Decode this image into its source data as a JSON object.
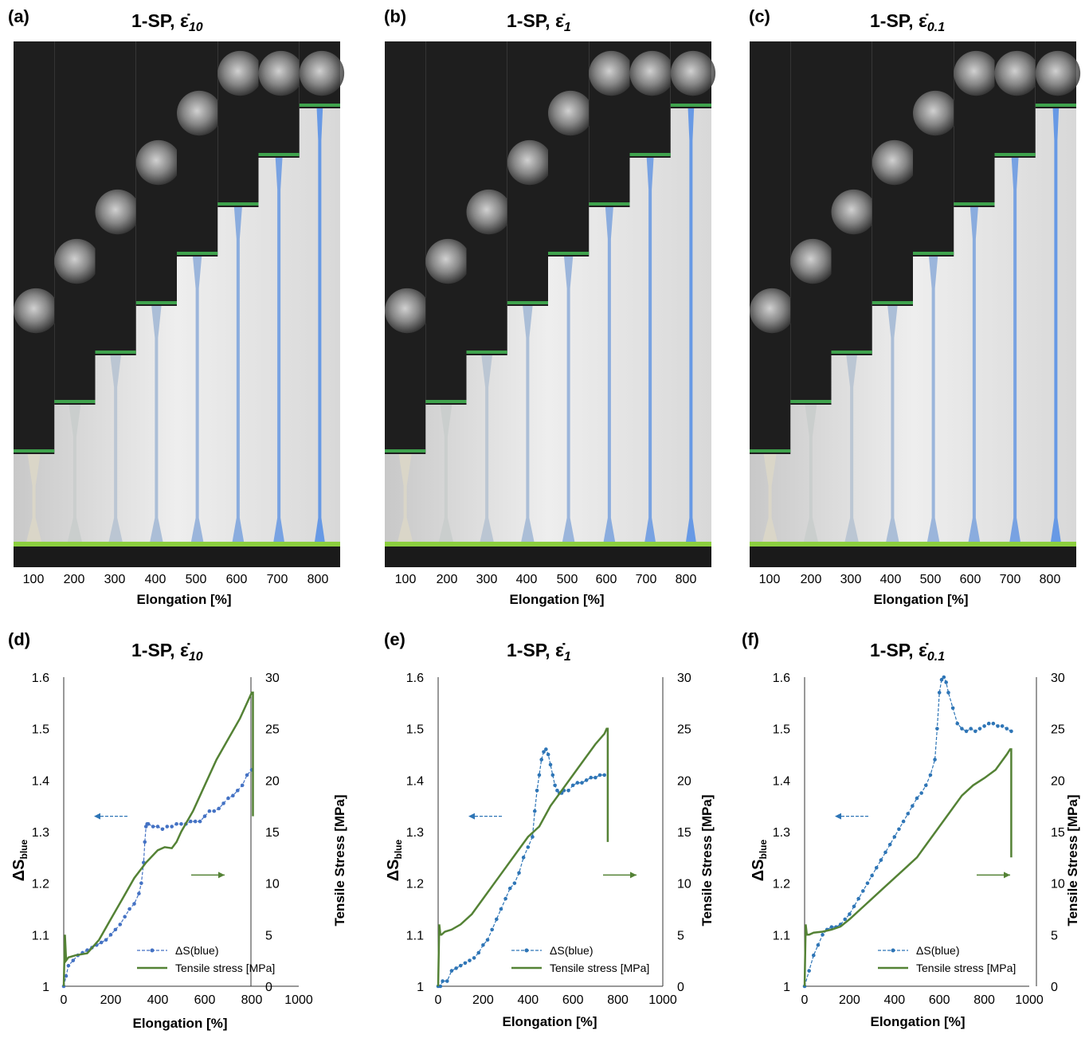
{
  "photo_panels": [
    {
      "letter": "(a)",
      "title": "1-SP, ",
      "rate_symbol": "ε̇",
      "rate_sub": "10",
      "xlabel": "Elongation [%]",
      "tick_labels": [
        "100",
        "200",
        "300",
        "400",
        "500",
        "600",
        "700",
        "800"
      ]
    },
    {
      "letter": "(b)",
      "title": "1-SP, ",
      "rate_symbol": "ε̇",
      "rate_sub": "1",
      "xlabel": "Elongation [%]",
      "tick_labels": [
        "100",
        "200",
        "300",
        "400",
        "500",
        "600",
        "700",
        "800"
      ]
    },
    {
      "letter": "(c)",
      "title": "1-SP, ",
      "rate_symbol": "ε̇",
      "rate_sub": "0.1",
      "xlabel": "Elongation [%]",
      "tick_labels": [
        "100",
        "200",
        "300",
        "400",
        "500",
        "600",
        "700",
        "800"
      ]
    }
  ],
  "chart_data": [
    {
      "type": "line",
      "letter": "(d)",
      "title": "1-SP, ",
      "rate_symbol": "ε̇",
      "rate_sub": "10",
      "xlabel": "Elongation [%]",
      "ylabel_main": "ΔS",
      "ylabel_sub": "blue",
      "y2label": "Tensile Stress [MPa]",
      "xlim": [
        0,
        1000
      ],
      "ylim": [
        1,
        1.6
      ],
      "y2lim": [
        0,
        30
      ],
      "xticks": [
        "0",
        "200",
        "400",
        "600",
        "800",
        "1000"
      ],
      "yticks": [
        "1",
        "1.1",
        "1.2",
        "1.3",
        "1.4",
        "1.5",
        "1.6"
      ],
      "y2ticks": [
        "0",
        "5",
        "10",
        "15",
        "20",
        "25",
        "30"
      ],
      "grid": false,
      "legend_position": "bottom-right",
      "series": [
        {
          "name": "ΔS(blue)",
          "axis": "left",
          "color": "#4472c4",
          "style": "dashed-markers",
          "x": [
            0,
            10,
            20,
            40,
            60,
            80,
            100,
            120,
            140,
            160,
            180,
            200,
            220,
            240,
            260,
            280,
            300,
            320,
            330,
            340,
            345,
            350,
            355,
            360,
            380,
            400,
            420,
            440,
            460,
            480,
            500,
            520,
            540,
            560,
            580,
            600,
            620,
            640,
            660,
            680,
            700,
            720,
            740,
            760,
            780,
            800
          ],
          "y": [
            1.0,
            1.02,
            1.04,
            1.05,
            1.06,
            1.065,
            1.07,
            1.075,
            1.08,
            1.085,
            1.09,
            1.1,
            1.11,
            1.12,
            1.135,
            1.15,
            1.16,
            1.18,
            1.2,
            1.24,
            1.28,
            1.31,
            1.315,
            1.315,
            1.31,
            1.31,
            1.305,
            1.31,
            1.31,
            1.315,
            1.315,
            1.315,
            1.32,
            1.32,
            1.32,
            1.33,
            1.34,
            1.34,
            1.345,
            1.355,
            1.365,
            1.37,
            1.38,
            1.39,
            1.41,
            1.42
          ]
        },
        {
          "name": "Tensile stress [MPa]",
          "axis": "right",
          "color": "#548235",
          "style": "solid",
          "x": [
            0,
            5,
            10,
            20,
            50,
            100,
            150,
            200,
            250,
            300,
            350,
            400,
            430,
            460,
            480,
            500,
            550,
            600,
            650,
            700,
            750,
            800,
            805,
            805
          ],
          "y": [
            0,
            5,
            2.5,
            2.8,
            3,
            3.2,
            4.5,
            6.5,
            8.5,
            10.5,
            12,
            13.2,
            13.5,
            13.4,
            14,
            15,
            17,
            19.5,
            22,
            24,
            26,
            28.5,
            28.5,
            16.5
          ]
        }
      ],
      "arrow_left": "←",
      "arrow_right": "→"
    },
    {
      "type": "line",
      "letter": "(e)",
      "title": "1-SP, ",
      "rate_symbol": "ε̇",
      "rate_sub": "1",
      "xlabel": "Elongation [%]",
      "ylabel_main": "ΔS",
      "ylabel_sub": "blue",
      "y2label": "Tensile Stress [MPa]",
      "xlim": [
        0,
        1000
      ],
      "ylim": [
        1,
        1.6
      ],
      "y2lim": [
        0,
        30
      ],
      "xticks": [
        "0",
        "200",
        "400",
        "600",
        "800",
        "1000"
      ],
      "yticks": [
        "1",
        "1.1",
        "1.2",
        "1.3",
        "1.4",
        "1.5",
        "1.6"
      ],
      "y2ticks": [
        "0",
        "5",
        "10",
        "15",
        "20",
        "25",
        "30"
      ],
      "grid": false,
      "legend_position": "bottom-right",
      "series": [
        {
          "name": "ΔS(blue)",
          "axis": "left",
          "color": "#2e75b6",
          "style": "dashed-markers",
          "x": [
            0,
            10,
            20,
            40,
            60,
            80,
            100,
            120,
            140,
            160,
            180,
            200,
            220,
            240,
            260,
            280,
            300,
            320,
            340,
            360,
            380,
            400,
            420,
            430,
            440,
            450,
            460,
            470,
            480,
            490,
            500,
            510,
            520,
            530,
            540,
            550,
            560,
            580,
            600,
            620,
            640,
            660,
            680,
            700,
            720,
            740
          ],
          "y": [
            1.0,
            1.0,
            1.01,
            1.01,
            1.03,
            1.035,
            1.04,
            1.045,
            1.05,
            1.055,
            1.065,
            1.08,
            1.09,
            1.11,
            1.13,
            1.15,
            1.17,
            1.19,
            1.2,
            1.22,
            1.25,
            1.27,
            1.29,
            1.34,
            1.38,
            1.41,
            1.44,
            1.455,
            1.46,
            1.45,
            1.43,
            1.41,
            1.39,
            1.38,
            1.375,
            1.375,
            1.38,
            1.38,
            1.39,
            1.395,
            1.395,
            1.4,
            1.405,
            1.405,
            1.41,
            1.41
          ]
        },
        {
          "name": "Tensile stress [MPa]",
          "axis": "right",
          "color": "#548235",
          "style": "solid",
          "x": [
            0,
            5,
            10,
            15,
            30,
            60,
            100,
            150,
            200,
            250,
            300,
            350,
            400,
            450,
            500,
            550,
            600,
            650,
            700,
            740,
            750,
            755,
            755
          ],
          "y": [
            0,
            6,
            5,
            5,
            5.3,
            5.5,
            6,
            7,
            8.5,
            10,
            11.5,
            13,
            14.5,
            15.5,
            17.5,
            19,
            20.5,
            22,
            23.5,
            24.5,
            25,
            25,
            14
          ]
        }
      ],
      "arrow_left": "←",
      "arrow_right": "→"
    },
    {
      "type": "line",
      "letter": "(f)",
      "title": "1-SP, ",
      "rate_symbol": "ε̇",
      "rate_sub": "0.1",
      "xlabel": "Elongation [%]",
      "ylabel_main": "ΔS",
      "ylabel_sub": "blue",
      "y2label": "Tensile Stress [MPa]",
      "xlim": [
        0,
        1000
      ],
      "ylim": [
        1,
        1.6
      ],
      "y2lim": [
        0,
        30
      ],
      "xticks": [
        "0",
        "200",
        "400",
        "600",
        "800",
        "1000"
      ],
      "yticks": [
        "1",
        "1.1",
        "1.2",
        "1.3",
        "1.4",
        "1.5",
        "1.6"
      ],
      "y2ticks": [
        "0",
        "5",
        "10",
        "15",
        "20",
        "25",
        "30"
      ],
      "grid": false,
      "legend_position": "bottom-right",
      "series": [
        {
          "name": "ΔS(blue)",
          "axis": "left",
          "color": "#2e75b6",
          "style": "dashed-markers",
          "x": [
            0,
            20,
            40,
            60,
            80,
            100,
            120,
            140,
            160,
            180,
            200,
            220,
            240,
            260,
            280,
            300,
            320,
            340,
            360,
            380,
            400,
            420,
            440,
            460,
            480,
            500,
            520,
            540,
            560,
            580,
            590,
            600,
            610,
            620,
            630,
            640,
            660,
            680,
            700,
            720,
            740,
            760,
            780,
            800,
            820,
            840,
            860,
            880,
            900,
            920
          ],
          "y": [
            1.0,
            1.03,
            1.06,
            1.08,
            1.1,
            1.11,
            1.115,
            1.115,
            1.12,
            1.13,
            1.14,
            1.155,
            1.17,
            1.185,
            1.2,
            1.215,
            1.23,
            1.245,
            1.26,
            1.275,
            1.29,
            1.305,
            1.32,
            1.335,
            1.35,
            1.365,
            1.375,
            1.39,
            1.41,
            1.44,
            1.5,
            1.57,
            1.595,
            1.6,
            1.59,
            1.57,
            1.54,
            1.51,
            1.5,
            1.495,
            1.5,
            1.495,
            1.5,
            1.505,
            1.51,
            1.51,
            1.505,
            1.505,
            1.5,
            1.495
          ]
        },
        {
          "name": "Tensile stress [MPa]",
          "axis": "right",
          "color": "#548235",
          "style": "solid",
          "x": [
            0,
            5,
            10,
            20,
            40,
            80,
            120,
            160,
            200,
            250,
            300,
            350,
            400,
            450,
            500,
            550,
            600,
            650,
            700,
            750,
            800,
            850,
            900,
            915,
            920,
            920
          ],
          "y": [
            0,
            6,
            5,
            5,
            5.2,
            5.3,
            5.5,
            5.8,
            6.5,
            7.5,
            8.5,
            9.5,
            10.5,
            11.5,
            12.5,
            14,
            15.5,
            17,
            18.5,
            19.5,
            20.2,
            21,
            22.5,
            23,
            23,
            12.5
          ]
        }
      ],
      "arrow_left": "←",
      "arrow_right": "→"
    }
  ]
}
